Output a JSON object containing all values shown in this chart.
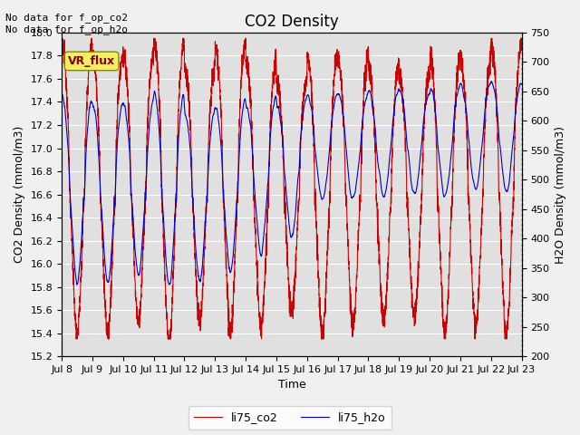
{
  "title": "CO2 Density",
  "xlabel": "Time",
  "ylabel_left": "CO2 Density (mmol/m3)",
  "ylabel_right": "H2O Density (mmol/m3)",
  "ylim_left": [
    15.2,
    18.0
  ],
  "ylim_right": [
    200,
    750
  ],
  "xlim": [
    0,
    360
  ],
  "xtick_positions": [
    0,
    24,
    48,
    72,
    96,
    120,
    144,
    168,
    192,
    216,
    240,
    264,
    288,
    312,
    336,
    360
  ],
  "xtick_labels": [
    "Jul 8",
    "Jul 9",
    "Jul 10",
    "Jul 11",
    "Jul 12",
    "Jul 13",
    "Jul 14",
    "Jul 15",
    "Jul 16",
    "Jul 17",
    "Jul 18",
    "Jul 19",
    "Jul 20",
    "Jul 21",
    "Jul 22",
    "Jul 23"
  ],
  "annotation_text": "No data for f_op_co2\nNo data for f_op_h2o",
  "vr_flux_text": "VR_flux",
  "legend_labels": [
    "li75_co2",
    "li75_h2o"
  ],
  "line_colors": [
    "#cc0000",
    "#0000cc"
  ],
  "background_color": "#e0e0e0",
  "fig_background": "#f0f0f0",
  "title_fontsize": 12,
  "axis_fontsize": 9,
  "tick_fontsize": 8,
  "annotation_fontsize": 8,
  "vr_fontsize": 9,
  "yticks_left": [
    15.2,
    15.4,
    15.6,
    15.8,
    16.0,
    16.2,
    16.4,
    16.6,
    16.8,
    17.0,
    17.2,
    17.4,
    17.6,
    17.8,
    18.0
  ],
  "yticks_right": [
    200,
    250,
    300,
    350,
    400,
    450,
    500,
    550,
    600,
    650,
    700,
    750
  ]
}
